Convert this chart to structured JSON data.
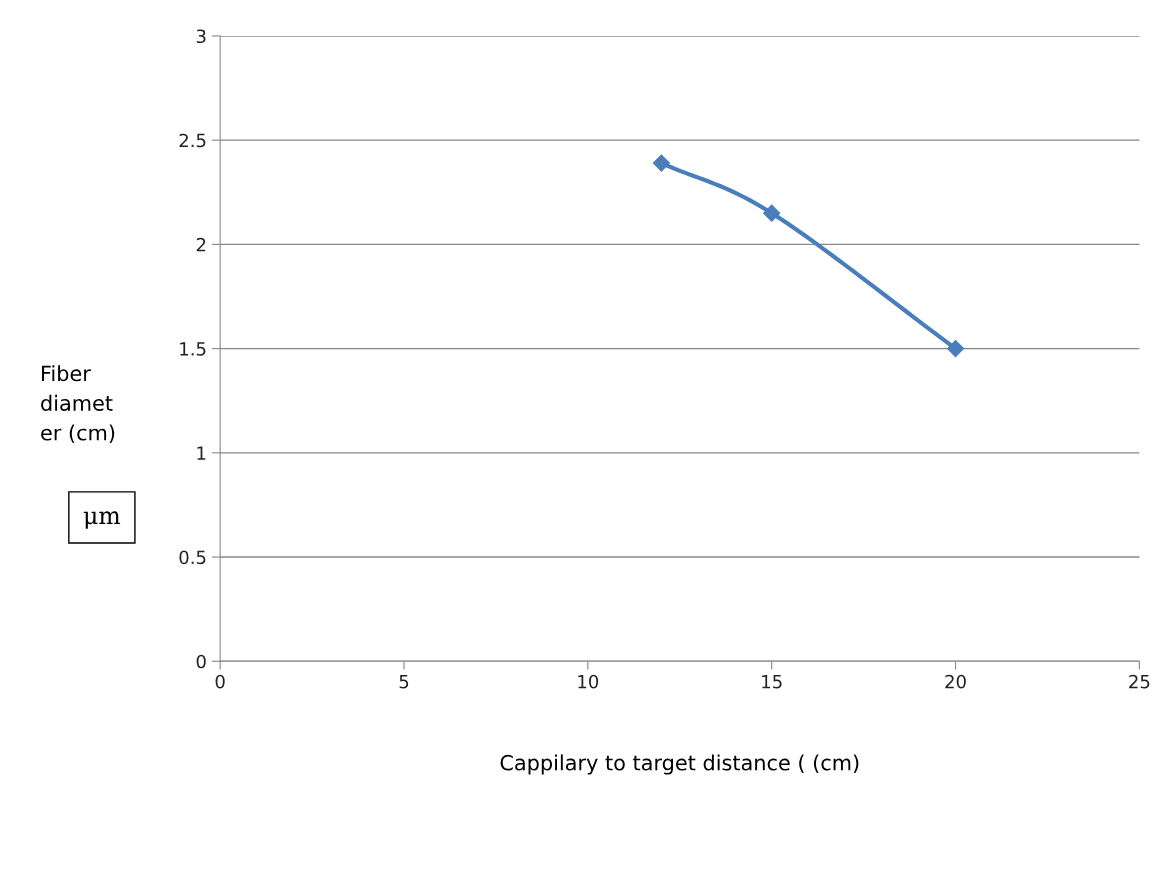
{
  "chart_data": {
    "type": "line",
    "xlabel": "Cappilary to target distance ( (cm)",
    "ylabel": "Fiber\ndiamet\ner (cm)",
    "annotations": [
      "μm"
    ],
    "x": [
      12,
      15,
      20
    ],
    "series": [
      {
        "color": "#4a7ebb",
        "values": [
          2.39,
          2.15,
          1.5
        ]
      }
    ],
    "xlim": [
      0,
      25
    ],
    "xticks": [
      0,
      5,
      10,
      15,
      20,
      25
    ],
    "ylim": [
      0,
      3
    ],
    "yticks": [
      0,
      0.5,
      1,
      1.5,
      2,
      2.5,
      3
    ],
    "grid": "y",
    "legend": false,
    "marker": "diamond",
    "line_style": "solid"
  }
}
